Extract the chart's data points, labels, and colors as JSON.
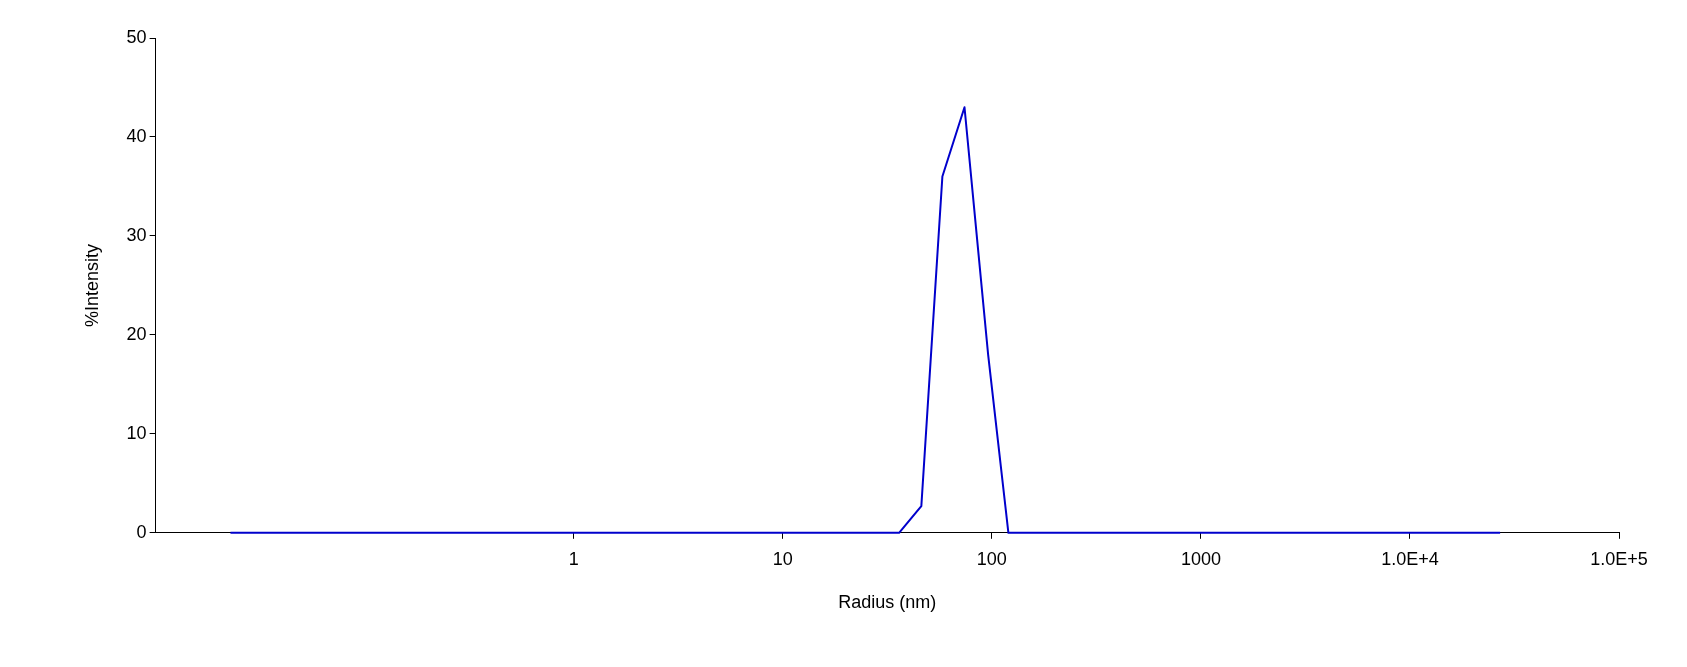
{
  "chart_data": {
    "type": "line",
    "xlabel": "Radius (nm)",
    "ylabel": "%Intensity",
    "log": "x",
    "grid": false,
    "legend": false,
    "marker": "none",
    "xlim": [
      0.01,
      100000
    ],
    "xticks": [
      1,
      10,
      100,
      1000,
      {
        "value": 10000,
        "label": "1.0E+4"
      },
      {
        "value": 100000,
        "label": "1.0E+5"
      }
    ],
    "ylim": [
      0,
      50
    ],
    "yticks": [
      0,
      10,
      20,
      30,
      40,
      50
    ],
    "x": [
      0.0228,
      36,
      46,
      58,
      74,
      96,
      120,
      27000
    ],
    "series": [
      {
        "color": "#0000cc",
        "values": [
          0,
          0,
          2.7,
          36,
          43,
          18,
          0,
          0
        ]
      }
    ]
  }
}
